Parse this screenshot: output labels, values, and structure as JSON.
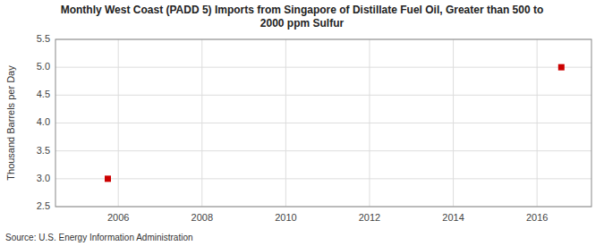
{
  "chart_data": {
    "type": "scatter",
    "title": "Monthly West Coast (PADD 5) Imports from Singapore of Distillate Fuel Oil, Greater than 500 to\n2000 ppm Sulfur",
    "y_label": "Thousand Barrels per Day",
    "annotations": [
      "Source: U.S. Energy Information Administration"
    ],
    "x": [
      2005.75,
      2016.58
    ],
    "values": [
      3.0,
      5.0
    ],
    "color": "#cc0000",
    "marker": "square",
    "xlim": [
      2004.5,
      2017.3
    ],
    "ylim": [
      2.5,
      5.5
    ],
    "xticks": [
      2006,
      2008,
      2010,
      2012,
      2014,
      2016
    ],
    "yticks": [
      2.5,
      {
        "value": 3.0,
        "label": "3.0"
      },
      3.5,
      {
        "value": 4.0,
        "label": "4.0"
      },
      4.5,
      {
        "value": 5.0,
        "label": "5.0"
      },
      5.5
    ],
    "grid": true
  }
}
